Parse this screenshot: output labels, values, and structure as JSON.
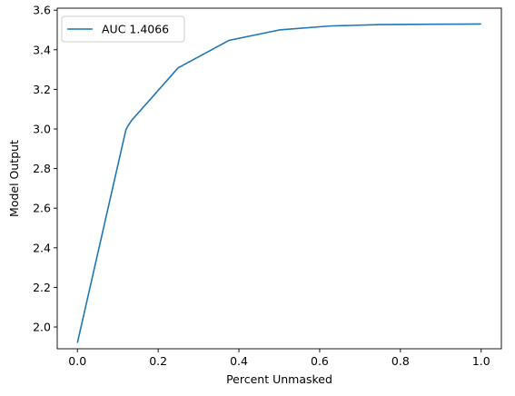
{
  "chart_data": {
    "type": "line",
    "title": "",
    "xlabel": "Percent Unmasked",
    "ylabel": "Model Output",
    "xlim": [
      -0.05,
      1.05
    ],
    "ylim": [
      1.89,
      3.61
    ],
    "xticks": [
      0.0,
      0.2,
      0.4,
      0.6,
      0.8,
      1.0
    ],
    "xtick_labels": [
      "0.0",
      "0.2",
      "0.4",
      "0.6",
      "0.8",
      "1.0"
    ],
    "yticks": [
      2.0,
      2.2,
      2.4,
      2.6,
      2.8,
      3.0,
      3.2,
      3.4,
      3.6
    ],
    "ytick_labels": [
      "2.0",
      "2.2",
      "2.4",
      "2.6",
      "2.8",
      "3.0",
      "3.2",
      "3.4",
      "3.6"
    ],
    "grid": false,
    "legend_position": "top-left",
    "series": [
      {
        "name": "AUC 1.4066",
        "color": "#1f77b4",
        "x": [
          0.0,
          0.12,
          0.125,
          0.135,
          0.25,
          0.26,
          0.375,
          0.5,
          0.625,
          0.75,
          0.875,
          1.0
        ],
        "y": [
          1.92,
          2.995,
          3.015,
          3.045,
          3.31,
          3.32,
          3.447,
          3.5,
          3.52,
          3.527,
          3.529,
          3.53
        ]
      }
    ]
  }
}
